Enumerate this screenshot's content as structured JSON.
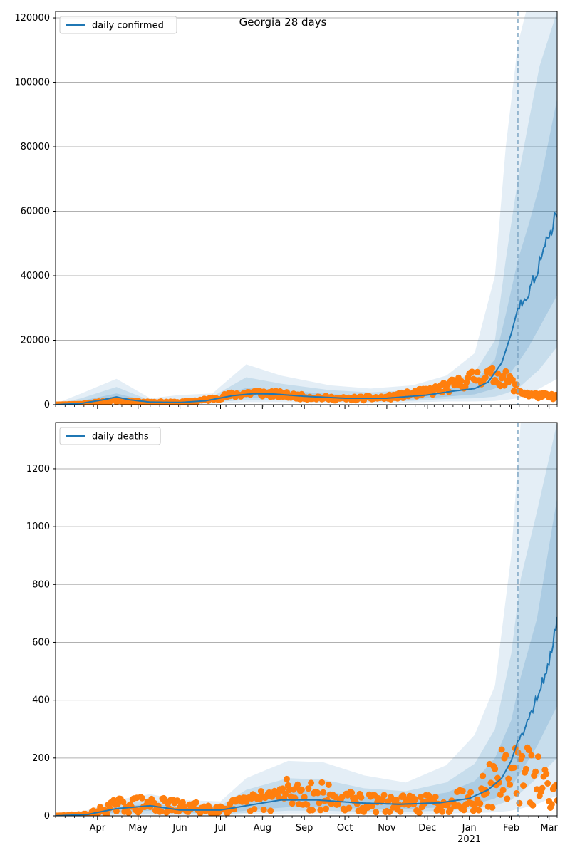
{
  "title": "Georgia 28 days",
  "colors": {
    "model": "#1f77b4",
    "observed": "#ff7f0e",
    "band": "#1f77b4",
    "grid": "#b0b0b0",
    "forecast_line": "#7fa6c4"
  },
  "x_axis": {
    "domain_start": "2020-03-01",
    "domain_end": "2021-03-07",
    "forecast_start": "2021-02-06",
    "month_ticks": [
      {
        "date": "2020-04-01",
        "label": "Apr"
      },
      {
        "date": "2020-05-01",
        "label": "May"
      },
      {
        "date": "2020-06-01",
        "label": "Jun"
      },
      {
        "date": "2020-07-01",
        "label": "Jul"
      },
      {
        "date": "2020-08-01",
        "label": "Aug"
      },
      {
        "date": "2020-09-01",
        "label": "Sep"
      },
      {
        "date": "2020-10-01",
        "label": "Oct"
      },
      {
        "date": "2020-11-01",
        "label": "Nov"
      },
      {
        "date": "2020-12-01",
        "label": "Dec"
      },
      {
        "date": "2021-01-01",
        "label": "Jan",
        "sublabel": "2021"
      },
      {
        "date": "2021-02-01",
        "label": "Feb"
      },
      {
        "date": "2021-03-01",
        "label": "Mar"
      }
    ]
  },
  "chart_data": [
    {
      "type": "line",
      "legend": "daily confirmed",
      "legend_position": "top-left",
      "grid": true,
      "ylim": [
        0,
        122000
      ],
      "yticks": [
        0,
        20000,
        40000,
        60000,
        80000,
        100000,
        120000
      ],
      "model_points": [
        [
          "2020-03-01",
          0
        ],
        [
          "2020-03-20",
          400
        ],
        [
          "2020-04-05",
          1500
        ],
        [
          "2020-04-15",
          2400
        ],
        [
          "2020-04-25",
          1500
        ],
        [
          "2020-05-10",
          800
        ],
        [
          "2020-06-01",
          700
        ],
        [
          "2020-06-20",
          1200
        ],
        [
          "2020-07-10",
          2800
        ],
        [
          "2020-07-25",
          3400
        ],
        [
          "2020-08-10",
          3300
        ],
        [
          "2020-09-01",
          2600
        ],
        [
          "2020-10-01",
          2000
        ],
        [
          "2020-11-01",
          2000
        ],
        [
          "2020-12-01",
          3000
        ],
        [
          "2020-12-20",
          4200
        ],
        [
          "2021-01-05",
          5000
        ],
        [
          "2021-01-15",
          7000
        ],
        [
          "2021-01-25",
          13000
        ],
        [
          "2021-02-01",
          22000
        ],
        [
          "2021-02-06",
          30000
        ],
        [
          "2021-02-14",
          35000
        ],
        [
          "2021-02-22",
          44000
        ],
        [
          "2021-03-01",
          52000
        ],
        [
          "2021-03-05",
          58000
        ],
        [
          "2021-03-07",
          61000
        ]
      ],
      "bands": [
        {
          "opacity": 0.12,
          "points": [
            [
              "2020-03-01",
              100,
              300
            ],
            [
              "2020-03-20",
              100,
              3500
            ],
            [
              "2020-04-15",
              400,
              8000
            ],
            [
              "2020-05-10",
              200,
              2000
            ],
            [
              "2020-06-01",
              200,
              3000
            ],
            [
              "2020-06-25",
              300,
              3500
            ],
            [
              "2020-07-20",
              800,
              12500
            ],
            [
              "2020-08-15",
              800,
              9000
            ],
            [
              "2020-09-20",
              600,
              6000
            ],
            [
              "2020-10-20",
              500,
              5000
            ],
            [
              "2020-11-20",
              700,
              6000
            ],
            [
              "2020-12-15",
              1000,
              9000
            ],
            [
              "2021-01-05",
              1000,
              16000
            ],
            [
              "2021-01-20",
              1200,
              40000
            ],
            [
              "2021-01-28",
              1500,
              80000
            ],
            [
              "2021-02-06",
              2000,
              112000
            ],
            [
              "2021-02-12",
              3000,
              122000
            ],
            [
              "2021-02-22",
              5000,
              122000
            ],
            [
              "2021-03-07",
              8000,
              122000
            ]
          ]
        },
        {
          "opacity": 0.14,
          "points": [
            [
              "2020-03-01",
              100,
              200
            ],
            [
              "2020-03-20",
              200,
              2000
            ],
            [
              "2020-04-15",
              900,
              5500
            ],
            [
              "2020-05-10",
              400,
              1300
            ],
            [
              "2020-06-01",
              400,
              1600
            ],
            [
              "2020-06-25",
              700,
              2500
            ],
            [
              "2020-07-20",
              1500,
              8500
            ],
            [
              "2020-08-15",
              1400,
              6500
            ],
            [
              "2020-09-20",
              1000,
              4500
            ],
            [
              "2020-10-20",
              900,
              3800
            ],
            [
              "2020-11-20",
              1200,
              4500
            ],
            [
              "2020-12-15",
              1800,
              6500
            ],
            [
              "2021-01-05",
              2000,
              10000
            ],
            [
              "2021-01-20",
              2500,
              20000
            ],
            [
              "2021-01-28",
              3500,
              45000
            ],
            [
              "2021-02-06",
              5000,
              70000
            ],
            [
              "2021-02-14",
              8000,
              88000
            ],
            [
              "2021-02-22",
              11000,
              105000
            ],
            [
              "2021-03-07",
              18000,
              122000
            ]
          ]
        },
        {
          "opacity": 0.16,
          "points": [
            [
              "2020-03-01",
              100,
              150
            ],
            [
              "2020-03-20",
              300,
              1200
            ],
            [
              "2020-04-15",
              1400,
              3500
            ],
            [
              "2020-05-10",
              600,
              1000
            ],
            [
              "2020-06-01",
              500,
              1200
            ],
            [
              "2020-06-25",
              1000,
              1800
            ],
            [
              "2020-07-20",
              2200,
              5200
            ],
            [
              "2020-08-15",
              2100,
              4500
            ],
            [
              "2020-09-20",
              1600,
              3300
            ],
            [
              "2020-10-20",
              1400,
              2700
            ],
            [
              "2020-11-20",
              1600,
              3300
            ],
            [
              "2020-12-15",
              2500,
              4800
            ],
            [
              "2021-01-05",
              3200,
              7000
            ],
            [
              "2021-01-20",
              5000,
              14000
            ],
            [
              "2021-01-28",
              8000,
              28000
            ],
            [
              "2021-02-06",
              13000,
              45000
            ],
            [
              "2021-02-14",
              18000,
              56000
            ],
            [
              "2021-02-22",
              24000,
              68000
            ],
            [
              "2021-03-07",
              34000,
              95000
            ]
          ]
        }
      ],
      "observed_daily": {
        "seed": 11,
        "noise": 0.32,
        "segments": [
          [
            "2020-03-01",
            0
          ],
          [
            "2020-03-20",
            200
          ],
          [
            "2020-04-05",
            900
          ],
          [
            "2020-04-15",
            1200
          ],
          [
            "2020-05-10",
            800
          ],
          [
            "2020-06-01",
            700
          ],
          [
            "2020-06-20",
            1500
          ],
          [
            "2020-07-10",
            3000
          ],
          [
            "2020-07-25",
            3800
          ],
          [
            "2020-08-10",
            3300
          ],
          [
            "2020-09-01",
            2400
          ],
          [
            "2020-10-01",
            1800
          ],
          [
            "2020-11-01",
            2200
          ],
          [
            "2020-12-01",
            4000
          ],
          [
            "2020-12-20",
            6000
          ],
          [
            "2021-01-05",
            8500
          ],
          [
            "2021-01-12",
            9000
          ],
          [
            "2021-01-25",
            8500
          ],
          [
            "2021-02-01",
            7000
          ],
          [
            "2021-02-06",
            4500
          ],
          [
            "2021-02-15",
            3000
          ],
          [
            "2021-03-07",
            2500
          ]
        ]
      }
    },
    {
      "type": "line",
      "legend": "daily deaths",
      "legend_position": "top-left",
      "grid": true,
      "ylim": [
        0,
        1360
      ],
      "yticks": [
        0,
        200,
        400,
        600,
        800,
        1000,
        1200
      ],
      "model_points": [
        [
          "2020-03-01",
          0
        ],
        [
          "2020-03-25",
          5
        ],
        [
          "2020-04-15",
          25
        ],
        [
          "2020-05-10",
          35
        ],
        [
          "2020-06-01",
          20
        ],
        [
          "2020-07-01",
          20
        ],
        [
          "2020-07-20",
          35
        ],
        [
          "2020-08-15",
          55
        ],
        [
          "2020-09-10",
          55
        ],
        [
          "2020-10-10",
          45
        ],
        [
          "2020-11-10",
          40
        ],
        [
          "2020-12-10",
          45
        ],
        [
          "2021-01-01",
          60
        ],
        [
          "2021-01-15",
          90
        ],
        [
          "2021-01-25",
          130
        ],
        [
          "2021-02-01",
          190
        ],
        [
          "2021-02-06",
          260
        ],
        [
          "2021-02-14",
          330
        ],
        [
          "2021-02-22",
          440
        ],
        [
          "2021-03-01",
          520
        ],
        [
          "2021-03-05",
          640
        ],
        [
          "2021-03-07",
          680
        ]
      ],
      "bands": [
        {
          "opacity": 0.12,
          "points": [
            [
              "2020-03-01",
              0,
              2
            ],
            [
              "2020-03-25",
              0,
              20
            ],
            [
              "2020-04-15",
              2,
              55
            ],
            [
              "2020-05-10",
              3,
              75
            ],
            [
              "2020-06-01",
              2,
              55
            ],
            [
              "2020-07-01",
              2,
              50
            ],
            [
              "2020-07-20",
              5,
              130
            ],
            [
              "2020-08-20",
              8,
              190
            ],
            [
              "2020-09-15",
              8,
              185
            ],
            [
              "2020-10-15",
              6,
              140
            ],
            [
              "2020-11-15",
              6,
              115
            ],
            [
              "2020-12-15",
              8,
              175
            ],
            [
              "2021-01-05",
              10,
              280
            ],
            [
              "2021-01-20",
              12,
              450
            ],
            [
              "2021-02-01",
              18,
              900
            ],
            [
              "2021-02-08",
              25,
              1360
            ],
            [
              "2021-02-20",
              40,
              1360
            ],
            [
              "2021-03-07",
              70,
              1360
            ]
          ]
        },
        {
          "opacity": 0.14,
          "points": [
            [
              "2020-03-01",
              0,
              1
            ],
            [
              "2020-03-25",
              1,
              12
            ],
            [
              "2020-04-15",
              5,
              40
            ],
            [
              "2020-05-10",
              8,
              55
            ],
            [
              "2020-06-01",
              5,
              40
            ],
            [
              "2020-07-01",
              5,
              35
            ],
            [
              "2020-07-20",
              10,
              90
            ],
            [
              "2020-08-20",
              18,
              130
            ],
            [
              "2020-09-15",
              18,
              125
            ],
            [
              "2020-10-15",
              14,
              95
            ],
            [
              "2020-11-15",
              14,
              85
            ],
            [
              "2020-12-15",
              18,
              115
            ],
            [
              "2021-01-05",
              25,
              180
            ],
            [
              "2021-01-20",
              35,
              300
            ],
            [
              "2021-02-01",
              55,
              560
            ],
            [
              "2021-02-08",
              80,
              820
            ],
            [
              "2021-02-20",
              130,
              1050
            ],
            [
              "2021-03-07",
              200,
              1360
            ]
          ]
        },
        {
          "opacity": 0.16,
          "points": [
            [
              "2020-03-01",
              0,
              1
            ],
            [
              "2020-03-25",
              2,
              8
            ],
            [
              "2020-04-15",
              12,
              30
            ],
            [
              "2020-05-10",
              18,
              42
            ],
            [
              "2020-06-01",
              10,
              30
            ],
            [
              "2020-07-01",
              10,
              28
            ],
            [
              "2020-07-20",
              18,
              60
            ],
            [
              "2020-08-20",
              30,
              90
            ],
            [
              "2020-09-15",
              30,
              85
            ],
            [
              "2020-10-15",
              25,
              65
            ],
            [
              "2020-11-15",
              24,
              60
            ],
            [
              "2020-12-15",
              30,
              80
            ],
            [
              "2021-01-05",
              40,
              120
            ],
            [
              "2021-01-20",
              60,
              200
            ],
            [
              "2021-02-01",
              100,
              330
            ],
            [
              "2021-02-08",
              150,
              480
            ],
            [
              "2021-02-20",
              240,
              680
            ],
            [
              "2021-03-07",
              380,
              1100
            ]
          ]
        }
      ],
      "observed_daily": {
        "seed": 29,
        "noise": 0.75,
        "segments": [
          [
            "2020-03-01",
            0
          ],
          [
            "2020-03-25",
            5
          ],
          [
            "2020-04-15",
            35
          ],
          [
            "2020-05-10",
            40
          ],
          [
            "2020-06-01",
            30
          ],
          [
            "2020-07-01",
            25
          ],
          [
            "2020-07-25",
            45
          ],
          [
            "2020-08-20",
            80
          ],
          [
            "2020-09-10",
            70
          ],
          [
            "2020-10-10",
            45
          ],
          [
            "2020-11-10",
            40
          ],
          [
            "2020-12-10",
            45
          ],
          [
            "2021-01-05",
            65
          ],
          [
            "2021-01-20",
            120
          ],
          [
            "2021-02-01",
            165
          ],
          [
            "2021-02-08",
            150
          ],
          [
            "2021-02-20",
            120
          ],
          [
            "2021-03-07",
            100
          ]
        ]
      }
    }
  ]
}
